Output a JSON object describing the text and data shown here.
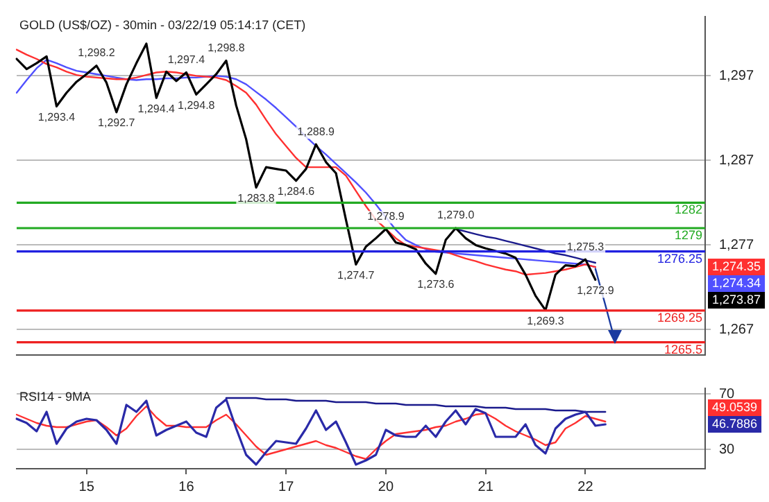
{
  "chart_data": [
    {
      "type": "line",
      "title": "GOLD (US$/OZ) - 30min - 03/22/19 05:14:17 (CET)",
      "categories": [
        null,
        null,
        null,
        null,
        null,
        null,
        null,
        "15",
        null,
        null,
        null,
        null,
        null,
        null,
        null,
        null,
        null,
        "16",
        null,
        null,
        null,
        null,
        null,
        null,
        null,
        null,
        null,
        "17",
        null,
        null,
        null,
        null,
        null,
        null,
        null,
        null,
        null,
        "20",
        null,
        null,
        null,
        null,
        null,
        null,
        null,
        null,
        null,
        "21",
        null,
        null,
        null,
        null,
        null,
        null,
        null,
        null,
        null,
        "22",
        null,
        null,
        null,
        null,
        null,
        null,
        null,
        null,
        null,
        null,
        null,
        null
      ],
      "ylim": [
        1264,
        1304
      ],
      "yticks": [
        {
          "value": 1267,
          "label": "1,267"
        },
        {
          "value": 1277,
          "label": "1,277"
        },
        {
          "value": 1287,
          "label": "1,287"
        },
        {
          "value": 1297,
          "label": "1,297"
        }
      ],
      "tick_labels": "y",
      "grid": "y",
      "legend": false,
      "marker": "none",
      "series": [
        {
          "color": "#000000",
          "values": [
            1299.0,
            1297.8,
            1298.5,
            1299.3,
            1293.4,
            1295.0,
            1296.3,
            1297.2,
            1298.2,
            1296.2,
            1292.7,
            1296.0,
            1298.5,
            1300.8,
            1294.4,
            1297.5,
            1296.4,
            1297.4,
            1294.8,
            1296.0,
            1297.2,
            1298.8,
            1293.5,
            1289.5,
            1283.8,
            1286.2,
            1286.0,
            1285.8,
            1284.6,
            1286.0,
            1288.9,
            1286.8,
            1285.5,
            1280.0,
            1274.7,
            1276.8,
            1277.8,
            1278.9,
            1277.3,
            1277.0,
            1276.5,
            1274.8,
            1273.6,
            1277.6,
            1279.0,
            1277.8,
            1277.0,
            1276.6,
            1276.3,
            1276.0,
            1275.5,
            1273.5,
            1271.0,
            1269.3,
            1273.5,
            1274.6,
            1274.5,
            1275.3,
            1272.9,
            null,
            null,
            null,
            null,
            null,
            null,
            null,
            null,
            null,
            null,
            null
          ]
        },
        {
          "color": "#ff3030",
          "values": [
            1300.1,
            1299.5,
            1299.0,
            1298.4,
            1298.0,
            1297.5,
            1297.1,
            1296.9,
            1296.8,
            1296.7,
            1296.6,
            1296.6,
            1296.8,
            1297.1,
            1297.4,
            1297.5,
            1297.4,
            1297.2,
            1297.0,
            1296.9,
            1296.8,
            1296.5,
            1295.8,
            1295.0,
            1293.6,
            1291.8,
            1290.1,
            1288.7,
            1287.3,
            1286.2,
            1286.2,
            1286.2,
            1286.2,
            1285.2,
            1283.4,
            1281.6,
            1280.0,
            1278.9,
            1277.8,
            1277.0,
            1276.8,
            1276.6,
            1276.4,
            1276.2,
            1275.8,
            1275.4,
            1275.1,
            1274.7,
            1274.4,
            1274.1,
            1273.9,
            1273.5,
            1273.6,
            1273.7,
            1273.9,
            1274.1,
            1274.4,
            1274.7,
            1274.4,
            null,
            null,
            null,
            null,
            null,
            null,
            null,
            null,
            null,
            null,
            null
          ]
        },
        {
          "color": "#5050ff",
          "values": [
            1295.0,
            1296.5,
            1297.9,
            1298.9,
            1298.5,
            1298.0,
            1297.6,
            1297.4,
            1297.2,
            1297.0,
            1296.8,
            1296.6,
            1296.5,
            1296.6,
            1296.6,
            1296.7,
            1296.7,
            1296.8,
            1296.8,
            1296.9,
            1297.0,
            1296.9,
            1296.6,
            1296.0,
            1295.1,
            1294.2,
            1293.2,
            1292.1,
            1291.0,
            1289.8,
            1288.7,
            1287.7,
            1286.6,
            1285.5,
            1284.4,
            1283.2,
            1281.8,
            1280.3,
            1278.8,
            1277.6,
            1277.0,
            1276.5,
            1276.2,
            1276.1,
            1276.0,
            1275.9,
            1275.8,
            1275.7,
            1275.6,
            1275.5,
            1275.4,
            1275.3,
            1275.2,
            1275.1,
            1275.0,
            1274.9,
            1274.8,
            1274.7,
            1274.4,
            null,
            null,
            null,
            null,
            null,
            null,
            null,
            null,
            null,
            null,
            null
          ]
        },
        {
          "color": "#1a1a8c",
          "values": [
            null,
            null,
            null,
            null,
            null,
            null,
            null,
            null,
            null,
            null,
            null,
            null,
            null,
            null,
            null,
            null,
            null,
            null,
            null,
            null,
            null,
            null,
            null,
            null,
            null,
            null,
            null,
            null,
            null,
            null,
            null,
            null,
            null,
            null,
            null,
            null,
            null,
            null,
            null,
            null,
            null,
            null,
            null,
            null,
            1278.9,
            1278.6,
            1278.3,
            1278.0,
            1277.8,
            1277.5,
            1277.2,
            1276.9,
            1276.6,
            1276.3,
            1276.0,
            1275.8,
            1275.5,
            1275.2,
            1274.9,
            null,
            null,
            null,
            null,
            null,
            null,
            null,
            null,
            null,
            null,
            null
          ]
        },
        {
          "color": "#1a3aa0",
          "values": [
            null,
            null,
            null,
            null,
            null,
            null,
            null,
            null,
            null,
            null,
            null,
            null,
            null,
            null,
            null,
            null,
            null,
            null,
            null,
            null,
            null,
            null,
            null,
            null,
            null,
            null,
            null,
            null,
            null,
            null,
            null,
            null,
            null,
            null,
            null,
            null,
            null,
            null,
            null,
            null,
            null,
            null,
            null,
            null,
            null,
            null,
            null,
            null,
            null,
            null,
            null,
            null,
            null,
            null,
            null,
            null,
            null,
            null,
            1274.2,
            1269.9,
            1265.5,
            null,
            null,
            null,
            null,
            null,
            null,
            null,
            null,
            null
          ]
        }
      ],
      "ref_lines": [
        {
          "axis": "y",
          "value": 1282,
          "label": "1282",
          "color": "#22aa22"
        },
        {
          "axis": "y",
          "value": 1279,
          "label": "1279",
          "color": "#22aa22"
        },
        {
          "axis": "y",
          "value": 1276.25,
          "label": "1276.25",
          "color": "#2020e0"
        },
        {
          "axis": "y",
          "value": 1269.25,
          "label": "1269.25",
          "color": "#ee2020"
        },
        {
          "axis": "y",
          "value": 1265.5,
          "label": "1265.5",
          "color": "#ee2020"
        }
      ],
      "annotations": [
        {
          "text": "1,293.4",
          "y": 1293.4
        },
        {
          "text": "1,298.2",
          "y": 1298.2
        },
        {
          "text": "1,292.7",
          "y": 1292.7
        },
        {
          "text": "1,294.4",
          "y": 1294.4
        },
        {
          "text": "1,297.4",
          "y": 1297.4
        },
        {
          "text": "1,294.8",
          "y": 1294.8
        },
        {
          "text": "1,298.8",
          "y": 1298.8
        },
        {
          "text": "1,283.8",
          "y": 1283.8
        },
        {
          "text": "1,284.6",
          "y": 1284.6
        },
        {
          "text": "1,288.9",
          "y": 1288.9
        },
        {
          "text": "1,274.7",
          "y": 1274.7
        },
        {
          "text": "1,278.9",
          "y": 1278.9
        },
        {
          "text": "1,273.6",
          "y": 1273.6
        },
        {
          "text": "1,279.0",
          "y": 1279.0
        },
        {
          "text": "1,269.3",
          "y": 1269.3
        },
        {
          "text": "1,275.3",
          "y": 1275.3
        },
        {
          "text": "1,272.9",
          "y": 1272.9
        },
        "1,273.87",
        "1,274.35",
        "1,274.34"
      ]
    },
    {
      "type": "line",
      "title": "RSI14 - 9MA",
      "categories": [
        null,
        null,
        null,
        null,
        null,
        null,
        null,
        "15",
        null,
        null,
        null,
        null,
        null,
        null,
        null,
        null,
        null,
        "16",
        null,
        null,
        null,
        null,
        null,
        null,
        null,
        null,
        null,
        "17",
        null,
        null,
        null,
        null,
        null,
        null,
        null,
        null,
        null,
        "20",
        null,
        null,
        null,
        null,
        null,
        null,
        null,
        null,
        null,
        "21",
        null,
        null,
        null,
        null,
        null,
        null,
        null,
        null,
        null,
        "22",
        null,
        null,
        null,
        null,
        null,
        null,
        null,
        null,
        null,
        null,
        null,
        null
      ],
      "ylim": [
        16,
        74
      ],
      "yticks": [
        30,
        70
      ],
      "grid": "y",
      "legend": false,
      "marker": "none",
      "series": [
        {
          "color": "#2a2aa8",
          "values": [
            52,
            49,
            43,
            57,
            34,
            45,
            50,
            52,
            51,
            44,
            34,
            62,
            57,
            65,
            40,
            44,
            47,
            50,
            42,
            39,
            60,
            66,
            45,
            26,
            19,
            28,
            36,
            35,
            34,
            45,
            58,
            44,
            50,
            35,
            19,
            22,
            26,
            44,
            40,
            39,
            39,
            47,
            39,
            50,
            58,
            48,
            59,
            56,
            39,
            39,
            39,
            48,
            33,
            27,
            45,
            52,
            55,
            57,
            47,
            48,
            null,
            null,
            null,
            null,
            null,
            null,
            null,
            null,
            null,
            null
          ]
        },
        {
          "color": "#ff3030",
          "values": [
            55,
            52,
            49,
            47,
            46,
            46,
            48,
            50,
            51,
            46,
            40,
            45,
            54,
            61,
            53,
            47,
            47,
            46,
            46,
            46,
            51,
            55,
            48,
            40,
            32,
            26,
            28,
            30,
            32,
            34,
            36,
            33,
            31,
            28,
            25,
            23,
            30,
            36,
            41,
            42,
            43,
            44,
            46,
            47,
            50,
            52,
            55,
            56,
            52,
            47,
            43,
            40,
            37,
            33,
            35,
            45,
            49,
            54,
            52,
            50,
            null,
            null,
            null,
            null,
            null,
            null,
            null,
            null,
            null,
            null
          ]
        },
        {
          "color": "#1a1a8c",
          "values": [
            null,
            null,
            null,
            null,
            null,
            null,
            null,
            null,
            null,
            null,
            null,
            null,
            null,
            null,
            null,
            null,
            null,
            null,
            null,
            null,
            null,
            67,
            67,
            67,
            67,
            66,
            66,
            66,
            65,
            65,
            65,
            65,
            64,
            64,
            64,
            64,
            63,
            63,
            63,
            62,
            62,
            62,
            62,
            61,
            61,
            61,
            61,
            60,
            60,
            60,
            59,
            59,
            59,
            59,
            58,
            58,
            58,
            57,
            57,
            57,
            null,
            null,
            null,
            null,
            null,
            null,
            null,
            null,
            null,
            null
          ]
        }
      ],
      "annotations": [
        "46.7886",
        "49.0539"
      ]
    }
  ]
}
